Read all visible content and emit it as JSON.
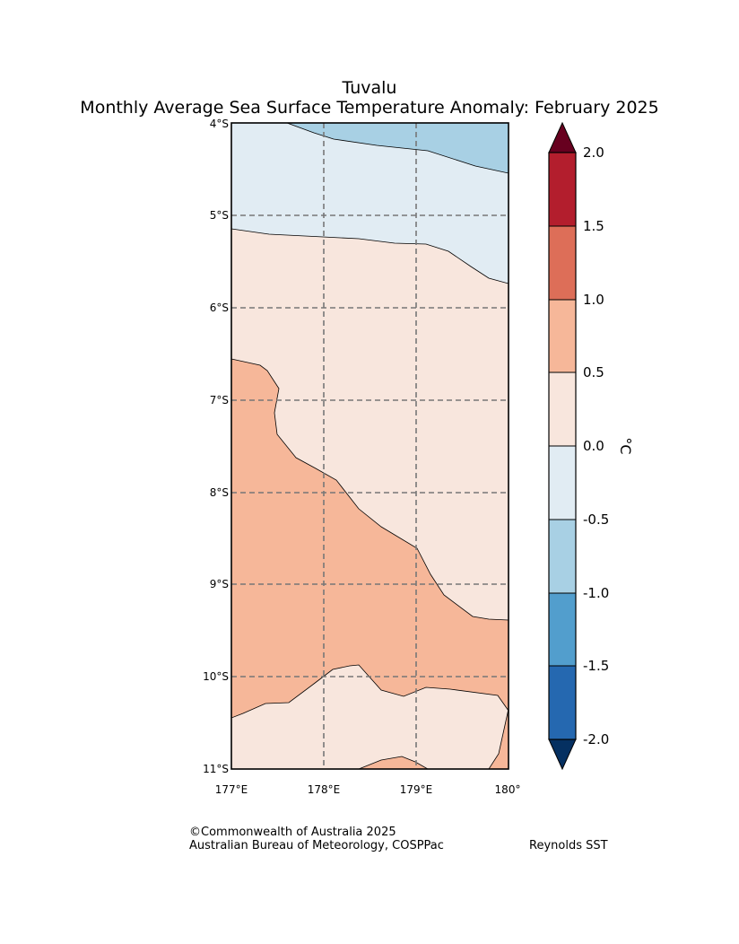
{
  "title": {
    "region": "Tuvalu",
    "subtitle": "Monthly Average Sea Surface Temperature Anomaly: February 2025"
  },
  "map": {
    "lon_range": [
      177,
      180
    ],
    "lat_range": [
      -11,
      -4
    ],
    "x_ticks": [
      "177°E",
      "178°E",
      "179°E",
      "180°"
    ],
    "y_ticks": [
      "4°S",
      "5°S",
      "6°S",
      "7°S",
      "8°S",
      "9°S",
      "10°S",
      "11°S"
    ],
    "gridlines": "dashed grey at 1° intervals",
    "anomaly_regions": [
      {
        "name": "north-strip",
        "bin": "-1.0 to -0.5 °C"
      },
      {
        "name": "north-band",
        "bin": "-0.5 to 0.0 °C"
      },
      {
        "name": "central",
        "bin": "0.0 to 0.5 °C"
      },
      {
        "name": "southwest-lobe",
        "bin": "0.5 to 1.0 °C"
      },
      {
        "name": "southern-pocket",
        "bin": "0.0 to 0.5 °C"
      },
      {
        "name": "southeast-sliver",
        "bin": "0.5 to 1.0 °C"
      },
      {
        "name": "south-edge-bump",
        "bin": "0.5 to 1.0 °C"
      }
    ]
  },
  "colorbar": {
    "unit": "°C",
    "ticks": [
      "2.0",
      "1.5",
      "1.0",
      "0.5",
      "0.0",
      "-0.5",
      "-1.0",
      "-1.5",
      "-2.0"
    ],
    "bins_top_to_bottom": [
      "#b31e2d",
      "#dd6e58",
      "#f6b799",
      "#f8e6dd",
      "#e1ecf3",
      "#a8d0e4",
      "#529ecd",
      "#2568b0"
    ],
    "over_color": "#67001f",
    "under_color": "#053061"
  },
  "footer": {
    "copyright": "©Commonwealth of Australia 2025",
    "agency": "Australian Bureau of Meteorology, COSPPac",
    "source": "Reynolds SST"
  }
}
